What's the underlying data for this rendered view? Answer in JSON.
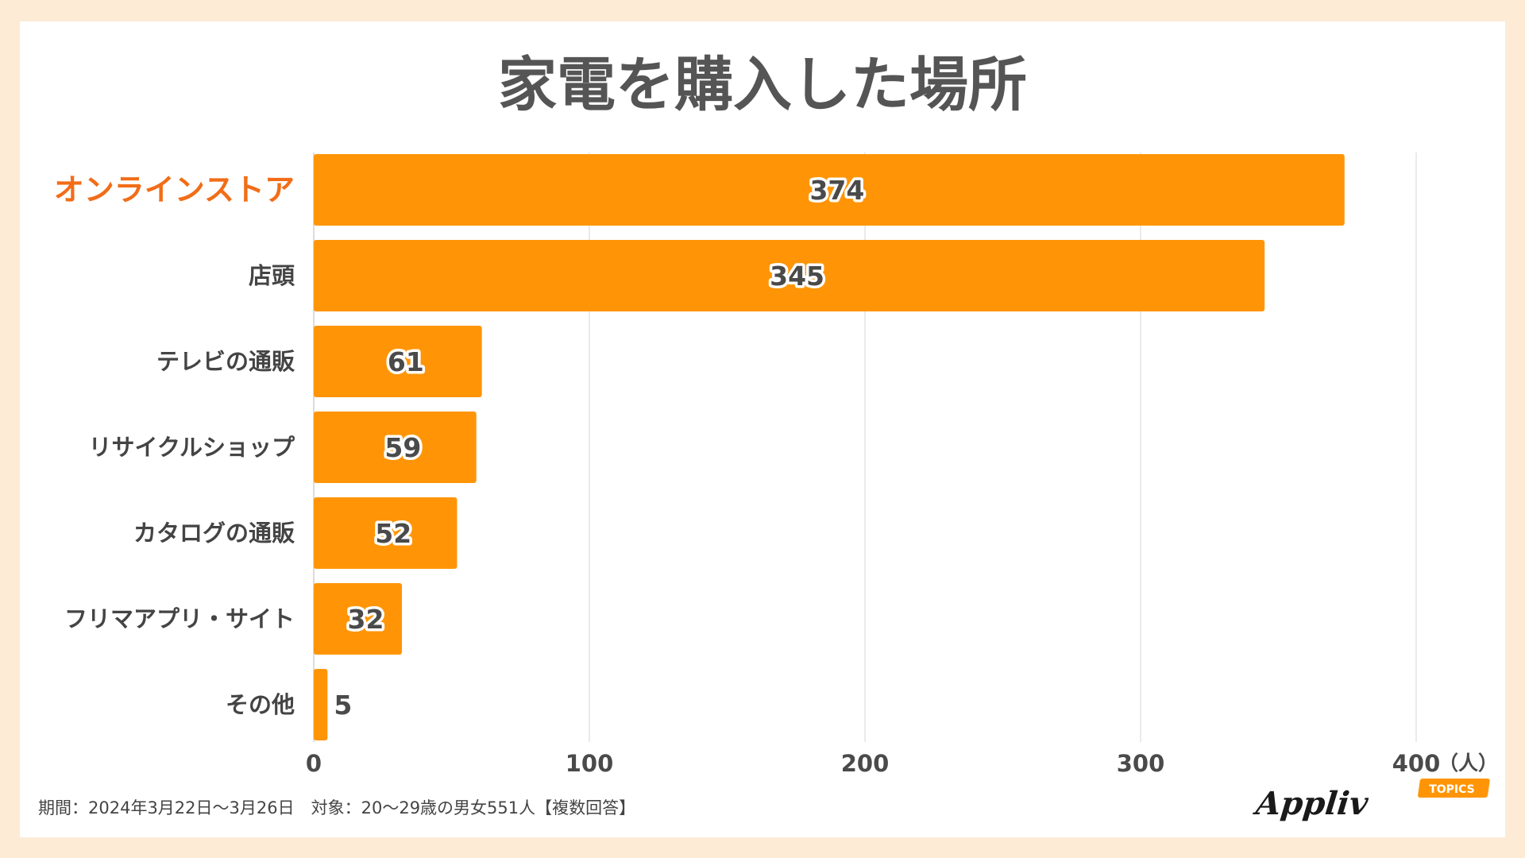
{
  "chart_data": {
    "type": "bar",
    "orientation": "horizontal",
    "title": "家電を購入した場所",
    "categories": [
      "オンラインストア",
      "店頭",
      "テレビの通販",
      "リサイクルショップ",
      "カタログの通販",
      "フリマアプリ・サイト",
      "その他"
    ],
    "values": [
      374,
      345,
      61,
      59,
      52,
      32,
      5
    ],
    "highlight_category": "オンラインストア",
    "x_ticks": [
      "0",
      "100",
      "200",
      "300",
      "400"
    ],
    "x_unit": "（人）",
    "xlim": [
      0,
      400
    ],
    "grid": true,
    "legend": "none"
  },
  "colors": {
    "bar": "#ff9506",
    "highlight_label": "#f26d18",
    "page_background": "#fdebd6",
    "card_background": "#ffffff",
    "gridline": "#e4e4e4"
  },
  "footnote": "期間：2024年3月22日〜3月26日　対象：20〜29歳の男女551人【複数回答】",
  "logo": {
    "text": "Appliv",
    "badge": "TOPICS"
  }
}
